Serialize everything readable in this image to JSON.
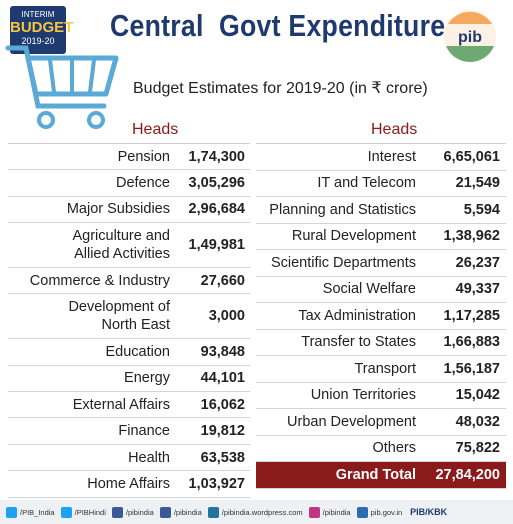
{
  "badge": {
    "line1": "INTERIM",
    "line2": "BUDGET",
    "line3": "2019-20"
  },
  "logo": "pib",
  "title": "Central  Govt Expenditure",
  "subtitle": "Budget Estimates for 2019-20 (in ₹ crore)",
  "left_table": {
    "header": "Heads",
    "rows": [
      {
        "label": [
          "Pension"
        ],
        "amount": "1,74,300"
      },
      {
        "label": [
          "Defence"
        ],
        "amount": "3,05,296"
      },
      {
        "label": [
          "Major Subsidies"
        ],
        "amount": "2,96,684"
      },
      {
        "label": [
          "Agriculture and",
          "Allied Activities"
        ],
        "amount": "1,49,981"
      },
      {
        "label": [
          "Commerce & Industry"
        ],
        "amount": "27,660"
      },
      {
        "label": [
          "Development of",
          "North East"
        ],
        "amount": "3,000"
      },
      {
        "label": [
          "Education"
        ],
        "amount": "93,848"
      },
      {
        "label": [
          "Energy"
        ],
        "amount": "44,101"
      },
      {
        "label": [
          "External Affairs"
        ],
        "amount": "16,062"
      },
      {
        "label": [
          "Finance"
        ],
        "amount": "19,812"
      },
      {
        "label": [
          "Health"
        ],
        "amount": "63,538"
      },
      {
        "label": [
          "Home Affairs"
        ],
        "amount": "1,03,927"
      }
    ]
  },
  "right_table": {
    "header": "Heads",
    "rows": [
      {
        "label": [
          "Interest"
        ],
        "amount": "6,65,061"
      },
      {
        "label": [
          "IT and Telecom"
        ],
        "amount": "21,549"
      },
      {
        "label": [
          "Planning and Statistics"
        ],
        "amount": "5,594"
      },
      {
        "label": [
          "Rural Development"
        ],
        "amount": "1,38,962"
      },
      {
        "label": [
          "Scientific Departments"
        ],
        "amount": "26,237"
      },
      {
        "label": [
          "Social Welfare"
        ],
        "amount": "49,337"
      },
      {
        "label": [
          "Tax Administration"
        ],
        "amount": "1,17,285"
      },
      {
        "label": [
          "Transfer to States"
        ],
        "amount": "1,66,883"
      },
      {
        "label": [
          "Transport"
        ],
        "amount": "1,56,187"
      },
      {
        "label": [
          "Union Territories"
        ],
        "amount": "15,042"
      },
      {
        "label": [
          "Urban Development"
        ],
        "amount": "48,032"
      },
      {
        "label": [
          "Others"
        ],
        "amount": "75,822"
      }
    ],
    "total": {
      "label": "Grand Total",
      "amount": "27,84,200"
    }
  },
  "footer": {
    "handles": [
      "/PIB_India",
      "/PIBHindi",
      "/pibindia",
      "/pibindia",
      "/pibindia.wordpress.com",
      "/pibindia",
      "pib.gov.in"
    ],
    "credit": "PIB/KBK"
  }
}
